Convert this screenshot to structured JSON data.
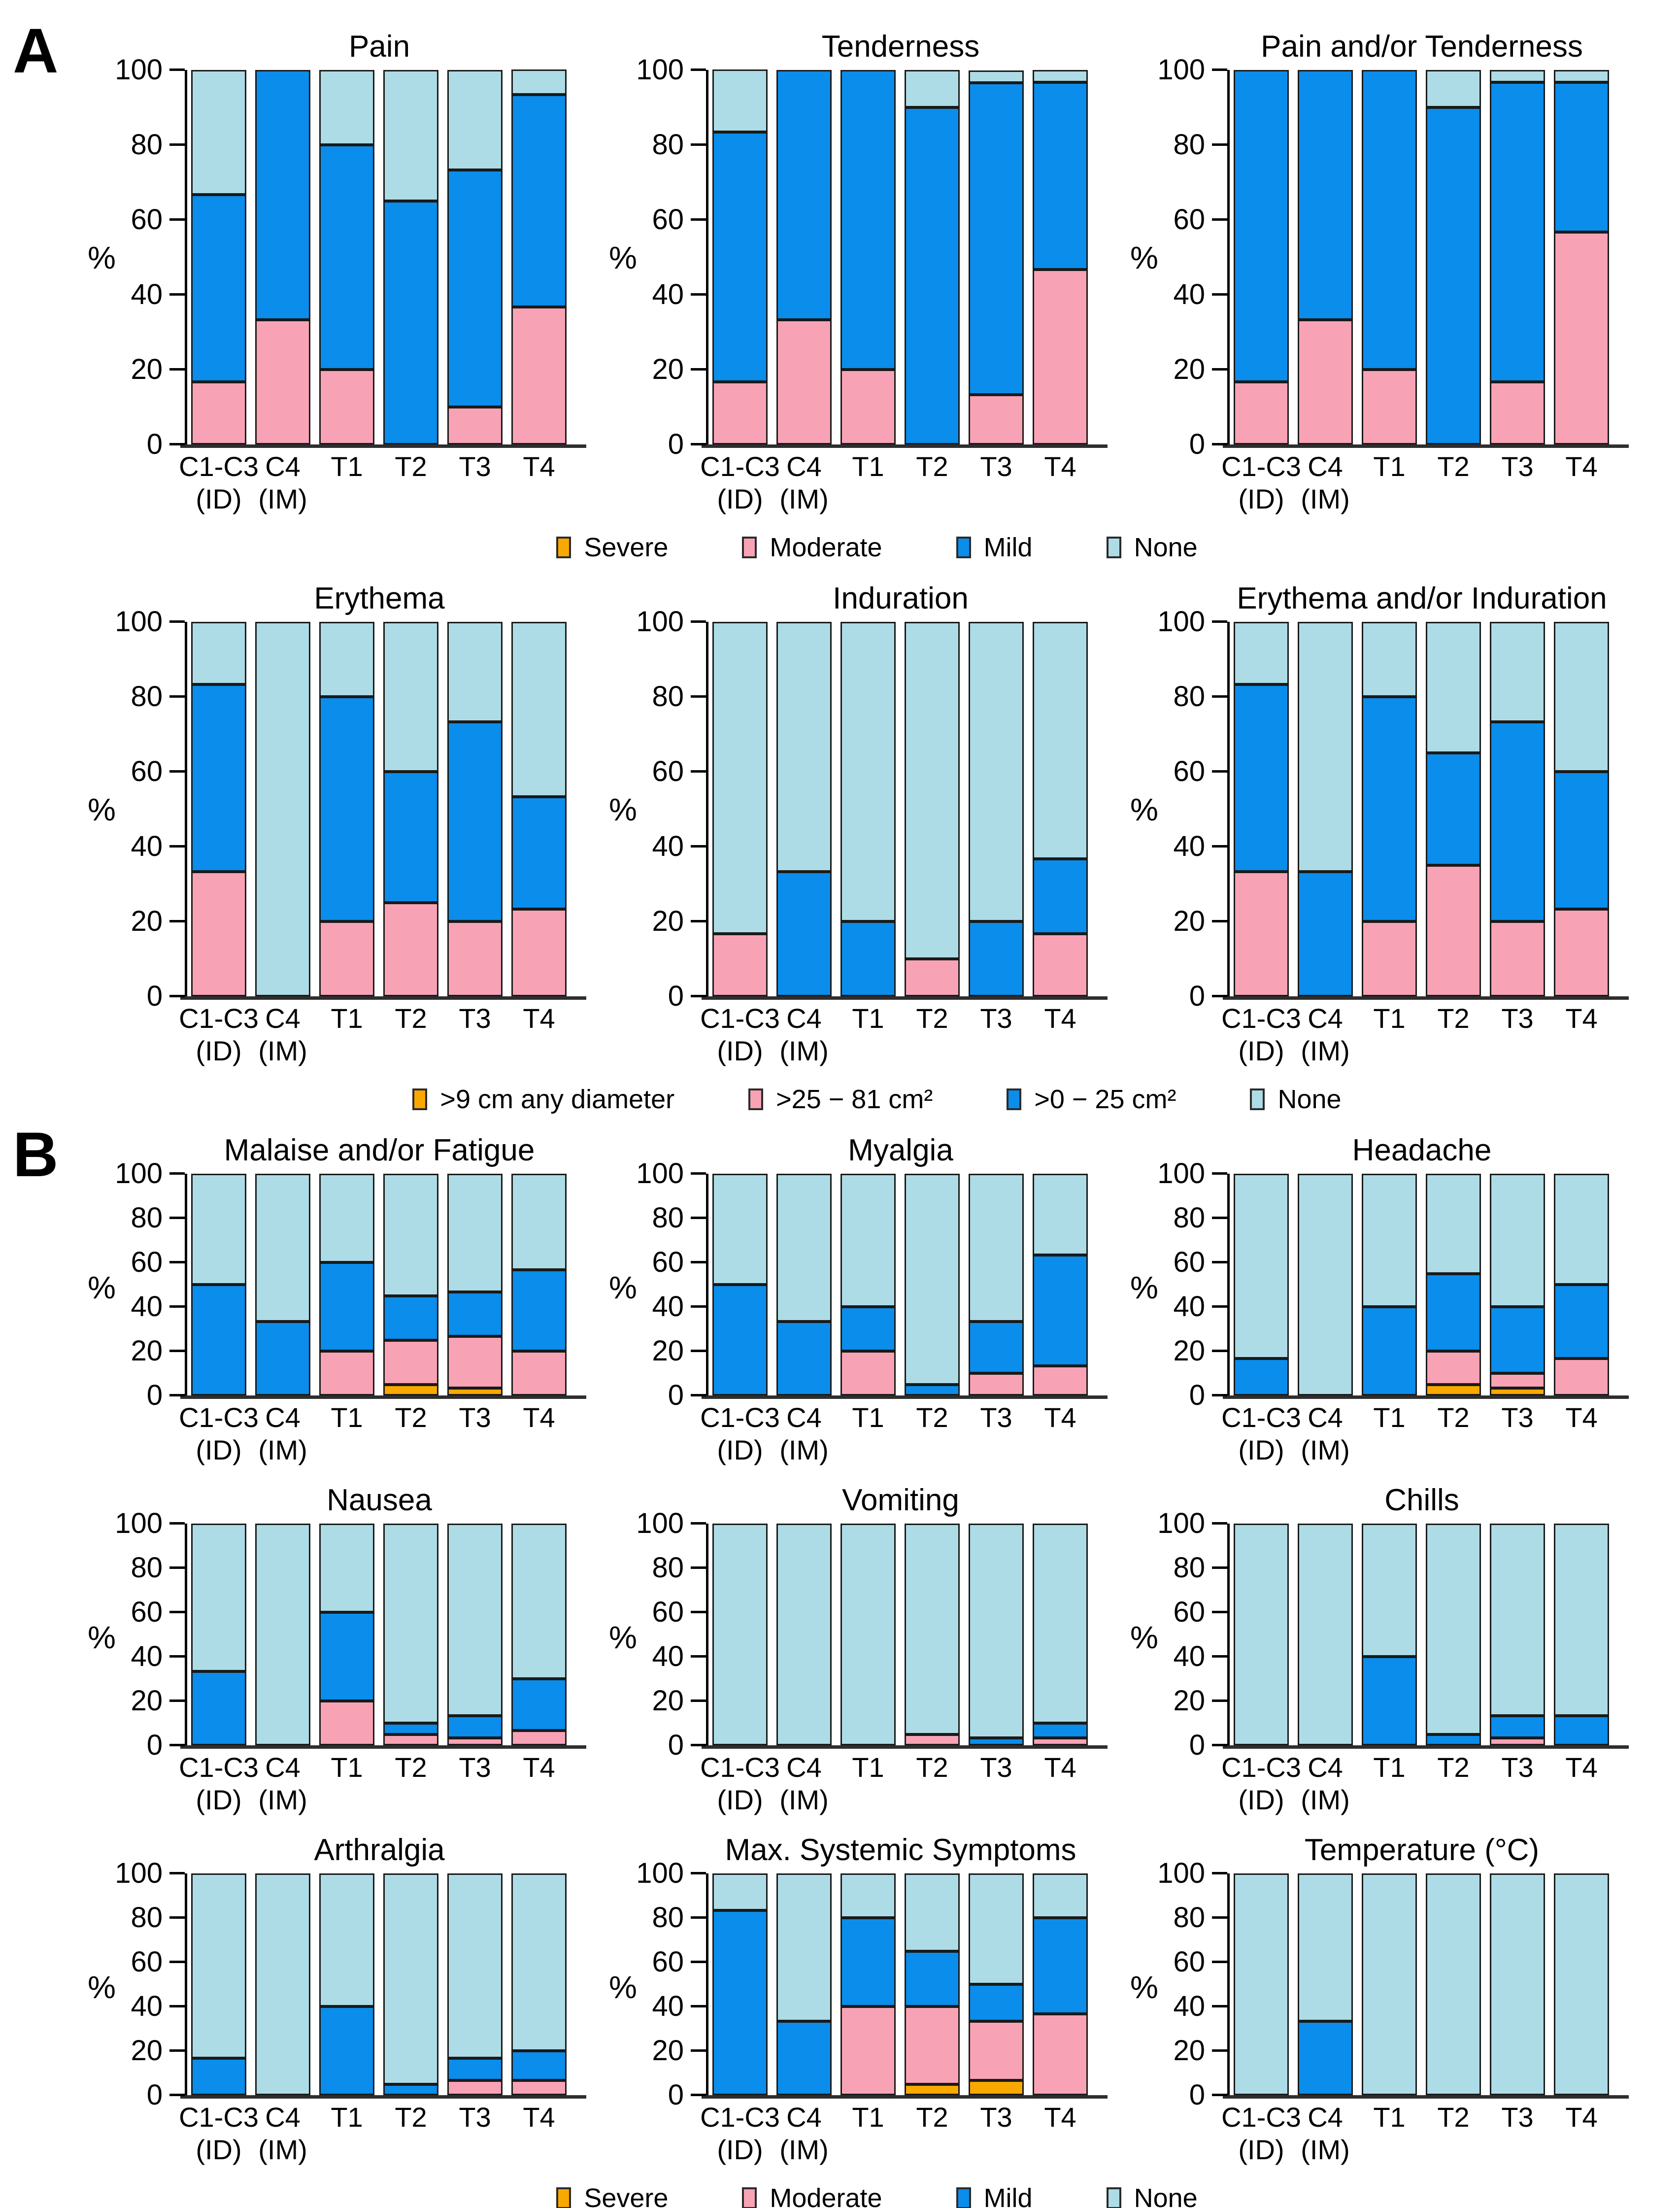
{
  "figure": {
    "panel_a_label": "A",
    "panel_b_label": "B",
    "ylabel": "%",
    "colors": {
      "severe": "#F9A800",
      "moderate": "#F7A3B5",
      "mild": "#0A8DEB",
      "none": "#ADDCE6"
    }
  },
  "chart_data": {
    "type": "bar",
    "stacked": true,
    "ylabel": "%",
    "ylim": [
      0,
      100
    ],
    "yticks": [
      0,
      20,
      40,
      60,
      80,
      100
    ],
    "grid": false,
    "categories": [
      "C1-C3 (ID)",
      "C4 (IM)",
      "T1",
      "T2",
      "T3",
      "T4"
    ],
    "category_lines": [
      {
        "line1": "C1-C3",
        "line2": "(ID)"
      },
      {
        "line1": "C4",
        "line2": "(IM)"
      },
      {
        "line1": "T1",
        "line2": ""
      },
      {
        "line1": "T2",
        "line2": ""
      },
      {
        "line1": "T3",
        "line2": ""
      },
      {
        "line1": "T4",
        "line2": ""
      }
    ],
    "series_order": [
      "severe",
      "moderate",
      "mild",
      "none"
    ],
    "panels": [
      {
        "label": "A",
        "plot_height": "tall",
        "rows": [
          {
            "charts": [
              {
                "title": "Pain",
                "series": {
                  "severe": [
                    0,
                    0,
                    0,
                    0,
                    0,
                    0
                  ],
                  "moderate": [
                    16.7,
                    33.3,
                    20,
                    0,
                    10,
                    36.7
                  ],
                  "mild": [
                    50,
                    66.7,
                    60,
                    65,
                    63.3,
                    56.7
                  ],
                  "none": [
                    33.3,
                    0,
                    20,
                    35,
                    26.7,
                    6.7
                  ]
                }
              },
              {
                "title": "Tenderness",
                "series": {
                  "severe": [
                    0,
                    0,
                    0,
                    0,
                    0,
                    0
                  ],
                  "moderate": [
                    16.7,
                    33.3,
                    20,
                    0,
                    13.3,
                    46.7
                  ],
                  "mild": [
                    66.7,
                    66.7,
                    80,
                    90,
                    83.3,
                    50
                  ],
                  "none": [
                    16.7,
                    0,
                    0,
                    10,
                    3.3,
                    3.3
                  ]
                }
              },
              {
                "title": "Pain and/or Tenderness",
                "series": {
                  "severe": [
                    0,
                    0,
                    0,
                    0,
                    0,
                    0
                  ],
                  "moderate": [
                    16.7,
                    33.3,
                    20,
                    0,
                    16.7,
                    56.7
                  ],
                  "mild": [
                    83.3,
                    66.7,
                    80,
                    90,
                    80,
                    40
                  ],
                  "none": [
                    0,
                    0,
                    0,
                    10,
                    3.3,
                    3.3
                  ]
                }
              }
            ],
            "legend": [
              {
                "key": "severe",
                "label": "Severe"
              },
              {
                "key": "moderate",
                "label": "Moderate"
              },
              {
                "key": "mild",
                "label": "Mild"
              },
              {
                "key": "none",
                "label": "None"
              }
            ]
          },
          {
            "charts": [
              {
                "title": "Erythema",
                "series": {
                  "severe": [
                    0,
                    0,
                    0,
                    0,
                    0,
                    0
                  ],
                  "moderate": [
                    33.3,
                    0,
                    20,
                    25,
                    20,
                    23.3
                  ],
                  "mild": [
                    50,
                    0,
                    60,
                    35,
                    53.3,
                    30
                  ],
                  "none": [
                    16.7,
                    100,
                    20,
                    40,
                    26.7,
                    46.7
                  ]
                }
              },
              {
                "title": "Induration",
                "series": {
                  "severe": [
                    0,
                    0,
                    0,
                    0,
                    0,
                    0
                  ],
                  "moderate": [
                    16.7,
                    0,
                    0,
                    10,
                    0,
                    16.7
                  ],
                  "mild": [
                    0,
                    33.3,
                    20,
                    0,
                    20,
                    20
                  ],
                  "none": [
                    83.3,
                    66.7,
                    80,
                    90,
                    80,
                    63.3
                  ]
                }
              },
              {
                "title": "Erythema and/or Induration",
                "series": {
                  "severe": [
                    0,
                    0,
                    0,
                    0,
                    0,
                    0
                  ],
                  "moderate": [
                    33.3,
                    0,
                    20,
                    35,
                    20,
                    23.3
                  ],
                  "mild": [
                    50,
                    33.3,
                    60,
                    30,
                    53.3,
                    36.7
                  ],
                  "none": [
                    16.7,
                    66.7,
                    20,
                    35,
                    26.7,
                    40
                  ]
                }
              }
            ],
            "legend": [
              {
                "key": "severe",
                "label": ">9 cm any diameter"
              },
              {
                "key": "moderate",
                "label": ">25 − 81 cm²"
              },
              {
                "key": "mild",
                "label": ">0 − 25 cm²"
              },
              {
                "key": "none",
                "label": "None"
              }
            ]
          }
        ]
      },
      {
        "label": "B",
        "plot_height": "short",
        "rows": [
          {
            "charts": [
              {
                "title": "Malaise and/or Fatigue",
                "series": {
                  "severe": [
                    0,
                    0,
                    0,
                    5,
                    3.3,
                    0
                  ],
                  "moderate": [
                    0,
                    0,
                    20,
                    20,
                    23.3,
                    20
                  ],
                  "mild": [
                    50,
                    33.3,
                    40,
                    20,
                    20,
                    36.7
                  ],
                  "none": [
                    50,
                    66.7,
                    40,
                    55,
                    53.3,
                    43.3
                  ]
                }
              },
              {
                "title": "Myalgia",
                "series": {
                  "severe": [
                    0,
                    0,
                    0,
                    0,
                    0,
                    0
                  ],
                  "moderate": [
                    0,
                    0,
                    20,
                    0,
                    10,
                    13.3
                  ],
                  "mild": [
                    50,
                    33.3,
                    20,
                    5,
                    23.3,
                    50
                  ],
                  "none": [
                    50,
                    66.7,
                    60,
                    95,
                    66.7,
                    36.7
                  ]
                }
              },
              {
                "title": "Headache",
                "series": {
                  "severe": [
                    0,
                    0,
                    0,
                    5,
                    3.3,
                    0
                  ],
                  "moderate": [
                    0,
                    0,
                    0,
                    15,
                    6.7,
                    16.7
                  ],
                  "mild": [
                    16.7,
                    0,
                    40,
                    35,
                    30,
                    33.3
                  ],
                  "none": [
                    83.3,
                    100,
                    60,
                    45,
                    60,
                    50
                  ]
                }
              }
            ]
          },
          {
            "charts": [
              {
                "title": "Nausea",
                "series": {
                  "severe": [
                    0,
                    0,
                    0,
                    0,
                    0,
                    0
                  ],
                  "moderate": [
                    0,
                    0,
                    20,
                    5,
                    3.3,
                    6.7
                  ],
                  "mild": [
                    33.3,
                    0,
                    40,
                    5,
                    10,
                    23.3
                  ],
                  "none": [
                    66.7,
                    100,
                    40,
                    90,
                    86.7,
                    70
                  ]
                }
              },
              {
                "title": "Vomiting",
                "series": {
                  "severe": [
                    0,
                    0,
                    0,
                    0,
                    0,
                    0
                  ],
                  "moderate": [
                    0,
                    0,
                    0,
                    5,
                    0,
                    3.3
                  ],
                  "mild": [
                    0,
                    0,
                    0,
                    0,
                    3.3,
                    6.7
                  ],
                  "none": [
                    100,
                    100,
                    100,
                    95,
                    96.7,
                    90
                  ]
                }
              },
              {
                "title": "Chills",
                "series": {
                  "severe": [
                    0,
                    0,
                    0,
                    0,
                    0,
                    0
                  ],
                  "moderate": [
                    0,
                    0,
                    0,
                    0,
                    3.3,
                    0
                  ],
                  "mild": [
                    0,
                    0,
                    40,
                    5,
                    10,
                    13.3
                  ],
                  "none": [
                    100,
                    100,
                    60,
                    95,
                    86.7,
                    86.7
                  ]
                }
              }
            ]
          },
          {
            "charts": [
              {
                "title": "Arthralgia",
                "series": {
                  "severe": [
                    0,
                    0,
                    0,
                    0,
                    0,
                    0
                  ],
                  "moderate": [
                    0,
                    0,
                    0,
                    0,
                    6.7,
                    6.7
                  ],
                  "mild": [
                    16.7,
                    0,
                    40,
                    5,
                    10,
                    13.3
                  ],
                  "none": [
                    83.3,
                    100,
                    60,
                    95,
                    83.3,
                    80
                  ]
                }
              },
              {
                "title": "Max. Systemic Symptoms",
                "series": {
                  "severe": [
                    0,
                    0,
                    0,
                    5,
                    6.7,
                    0
                  ],
                  "moderate": [
                    0,
                    0,
                    40,
                    35,
                    26.7,
                    36.7
                  ],
                  "mild": [
                    83.3,
                    33.3,
                    40,
                    25,
                    16.7,
                    43.3
                  ],
                  "none": [
                    16.7,
                    66.7,
                    20,
                    35,
                    50,
                    20
                  ]
                }
              },
              {
                "title": "Temperature (°C)",
                "series": {
                  "severe": [
                    0,
                    0,
                    0,
                    0,
                    0,
                    0
                  ],
                  "moderate": [
                    0,
                    0,
                    0,
                    0,
                    0,
                    0
                  ],
                  "mild": [
                    0,
                    33.3,
                    0,
                    0,
                    0,
                    0
                  ],
                  "none": [
                    100,
                    66.7,
                    100,
                    100,
                    100,
                    100
                  ]
                }
              }
            ],
            "legend": [
              {
                "key": "severe",
                "label": "Severe"
              },
              {
                "key": "moderate",
                "label": "Moderate"
              },
              {
                "key": "mild",
                "label": "Mild"
              },
              {
                "key": "none",
                "label": "None"
              }
            ]
          }
        ]
      }
    ]
  }
}
